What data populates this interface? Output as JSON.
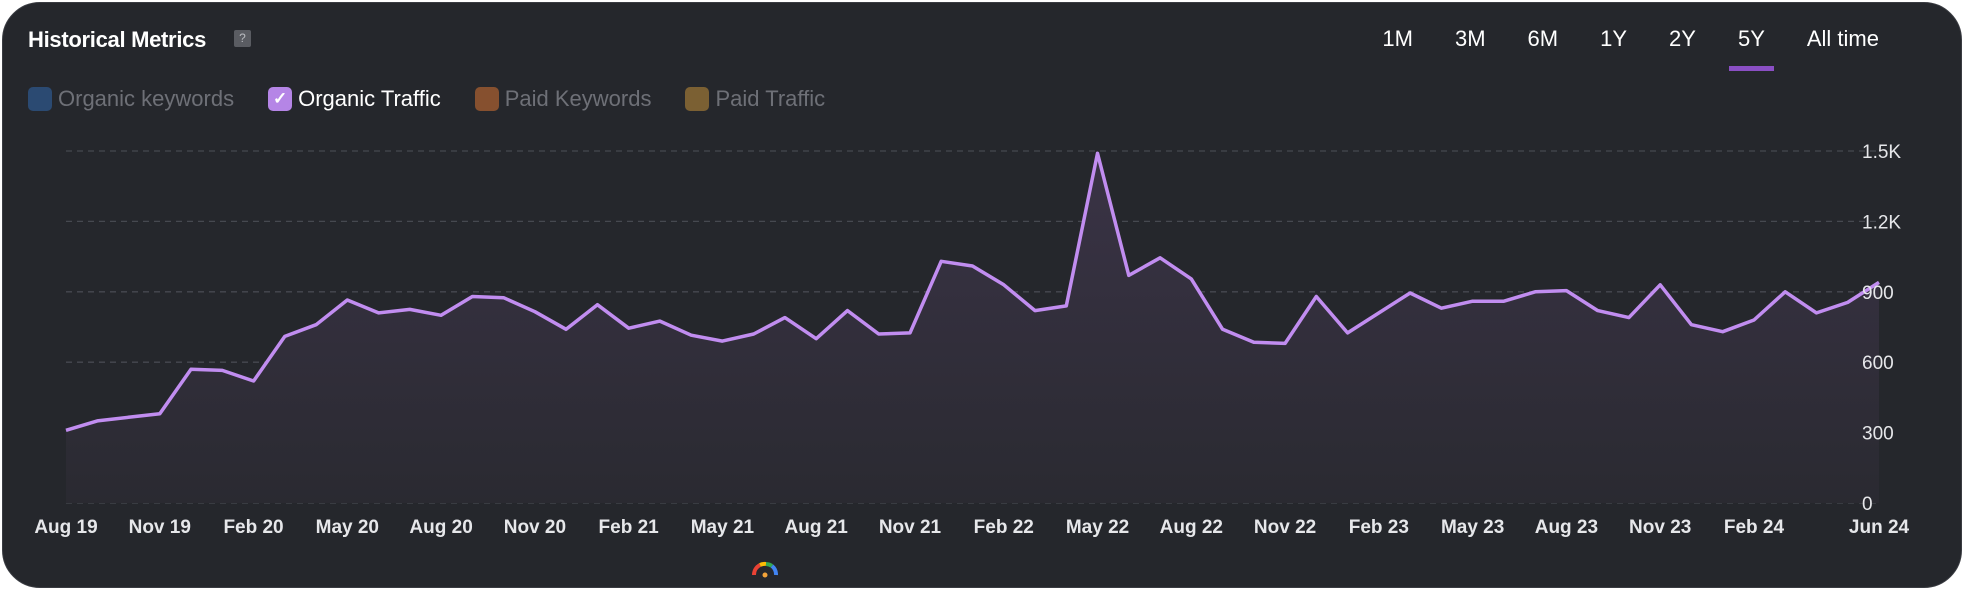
{
  "header": {
    "title": "Historical Metrics",
    "help_icon": "?"
  },
  "legend": [
    {
      "label": "Organic keywords",
      "color": "#2b4a72",
      "checked": false
    },
    {
      "label": "Organic Traffic",
      "color": "#b585e6",
      "checked": true
    },
    {
      "label": "Paid Keywords",
      "color": "#86502f",
      "checked": false
    },
    {
      "label": "Paid Traffic",
      "color": "#7b6033",
      "checked": false
    }
  ],
  "tabs": [
    {
      "label": "1M"
    },
    {
      "label": "3M"
    },
    {
      "label": "6M"
    },
    {
      "label": "1Y"
    },
    {
      "label": "2Y"
    },
    {
      "label": "5Y",
      "active": true
    },
    {
      "label": "All time"
    }
  ],
  "colors": {
    "line": "#c18df0",
    "fill": "#35303f",
    "accent": "#8a4fc4"
  },
  "chart_data": {
    "type": "area",
    "series": [
      {
        "name": "Organic Traffic",
        "values": [
          310,
          350,
          365,
          380,
          570,
          565,
          520,
          710,
          760,
          865,
          810,
          825,
          800,
          880,
          875,
          815,
          740,
          845,
          745,
          775,
          715,
          690,
          720,
          790,
          700,
          820,
          720,
          725,
          1030,
          1010,
          930,
          820,
          840,
          1490,
          970,
          1045,
          955,
          740,
          685,
          680,
          880,
          725,
          810,
          895,
          830,
          860,
          860,
          900,
          905,
          820,
          790,
          930,
          760,
          730,
          780,
          900,
          810,
          855,
          940
        ]
      }
    ],
    "x_start": "Aug 19",
    "x_end": "Jun 24",
    "x_interval": "monthly",
    "xticks": [
      "Aug 19",
      "Nov 19",
      "Feb 20",
      "May 20",
      "Aug 20",
      "Nov 20",
      "Feb 21",
      "May 21",
      "Aug 21",
      "Nov 21",
      "Feb 22",
      "May 22",
      "Aug 22",
      "Nov 22",
      "Feb 23",
      "May 23",
      "Aug 23",
      "Nov 23",
      "Feb 24",
      "Jun 24"
    ],
    "xtick_index": [
      0,
      3,
      6,
      9,
      12,
      15,
      18,
      21,
      24,
      27,
      30,
      33,
      36,
      39,
      42,
      45,
      48,
      51,
      54,
      58
    ],
    "yticks": [
      {
        "v": 0,
        "label": "0"
      },
      {
        "v": 300,
        "label": "300"
      },
      {
        "v": 600,
        "label": "600"
      },
      {
        "v": 900,
        "label": "900"
      },
      {
        "v": 1200,
        "label": "1.2K"
      },
      {
        "v": 1500,
        "label": "1.5K"
      }
    ],
    "ylim": [
      0,
      1500
    ],
    "grid": true,
    "ylabel_position": "right"
  }
}
